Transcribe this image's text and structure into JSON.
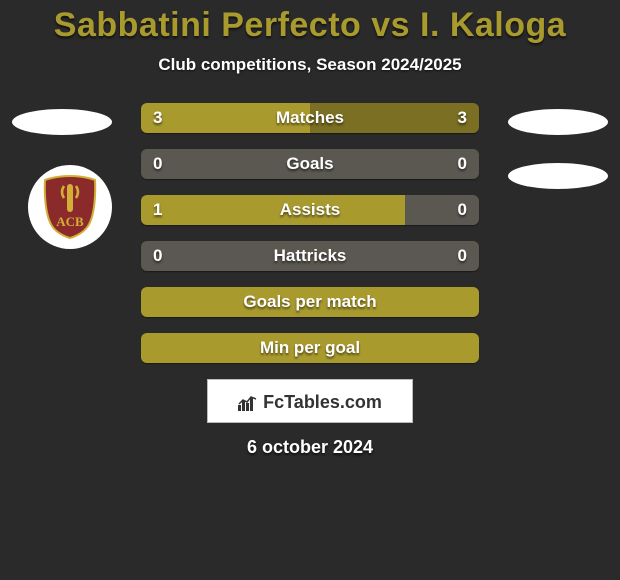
{
  "title": {
    "text": "Sabbatini Perfecto vs I. Kaloga",
    "color": "#a99a2e"
  },
  "subtitle": "Club competitions, Season 2024/2025",
  "colors": {
    "accent": "#a99a2e",
    "accent_dim": "#7a6f22",
    "neutral_bar": "#5a5850"
  },
  "rows": [
    {
      "label": "Matches",
      "left": "3",
      "right": "3",
      "left_pct": 50,
      "right_pct": 50,
      "left_color": "#a99a2e",
      "right_color": "#7a6f22"
    },
    {
      "label": "Goals",
      "left": "0",
      "right": "0",
      "left_pct": 100,
      "right_pct": 0,
      "left_color": "#5a5850",
      "right_color": "#5a5850"
    },
    {
      "label": "Assists",
      "left": "1",
      "right": "0",
      "left_pct": 78,
      "right_pct": 22,
      "left_color": "#a99a2e",
      "right_color": "#5a5850"
    },
    {
      "label": "Hattricks",
      "left": "0",
      "right": "0",
      "left_pct": 100,
      "right_pct": 0,
      "left_color": "#5a5850",
      "right_color": "#5a5850"
    },
    {
      "label": "Goals per match",
      "left": "",
      "right": "",
      "left_pct": 100,
      "right_pct": 0,
      "left_color": "#a99a2e",
      "right_color": "#a99a2e"
    },
    {
      "label": "Min per goal",
      "left": "",
      "right": "",
      "left_pct": 100,
      "right_pct": 0,
      "left_color": "#a99a2e",
      "right_color": "#a99a2e"
    }
  ],
  "attribution": "FcTables.com",
  "date": "6 october 2024",
  "crest": {
    "fill": "#8a2a2a",
    "letters": "ACB",
    "accent": "#d4af37"
  }
}
